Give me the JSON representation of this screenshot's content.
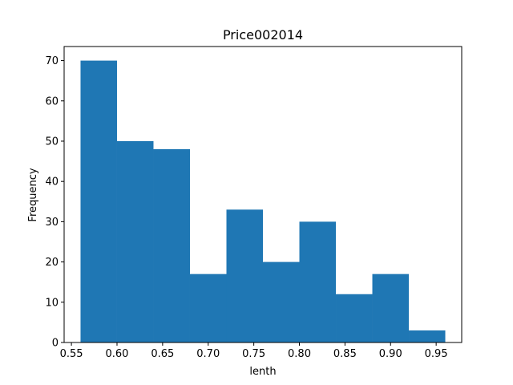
{
  "chart_data": {
    "type": "bar",
    "subtype": "histogram",
    "title": "Price002014",
    "xlabel": "lenth",
    "ylabel": "Frequency",
    "bin_edges": [
      0.56,
      0.6,
      0.64,
      0.68,
      0.72,
      0.76,
      0.8,
      0.84,
      0.88,
      0.92,
      0.96
    ],
    "values": [
      70,
      50,
      48,
      17,
      33,
      20,
      30,
      12,
      17,
      3
    ],
    "xlim": [
      0.542,
      0.978
    ],
    "ylim": [
      0,
      73.5
    ],
    "xticks": [
      0.55,
      0.6,
      0.65,
      0.7,
      0.75,
      0.8,
      0.85,
      0.9,
      0.95
    ],
    "xtick_labels": [
      "0.55",
      "0.60",
      "0.65",
      "0.70",
      "0.75",
      "0.80",
      "0.85",
      "0.90",
      "0.95"
    ],
    "yticks": [
      0,
      10,
      20,
      30,
      40,
      50,
      60,
      70
    ],
    "ytick_labels": [
      "0",
      "10",
      "20",
      "30",
      "40",
      "50",
      "60",
      "70"
    ],
    "bar_color": "#1f77b4",
    "grid": false,
    "legend": "none"
  }
}
